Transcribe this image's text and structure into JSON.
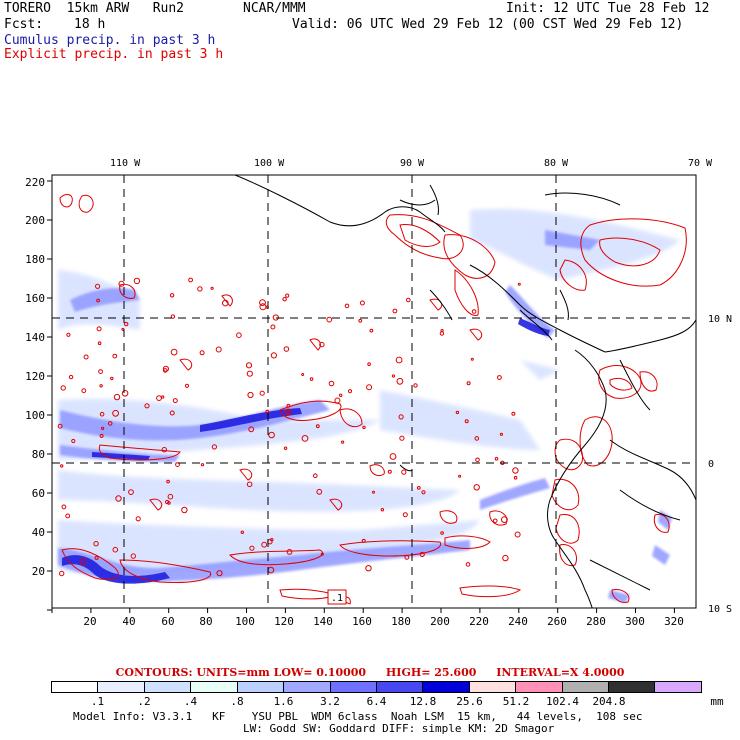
{
  "header": {
    "model": "TORERO  15km ARW   Run2",
    "org": "NCAR/MMM",
    "init": "Init: 12 UTC Tue 28 Feb 12",
    "fcst_label": "Fcst:",
    "fcst_value": "18 h",
    "valid": "Valid: 06 UTC Wed 29 Feb 12 (00 CST Wed 29 Feb 12)",
    "line_blue": "Cumulus precip. in past 3 h",
    "line_red": "Explicit precip. in past 3 h"
  },
  "axes": {
    "top_lon": [
      "110 W",
      "100 W",
      "90 W",
      "80 W",
      "70 W"
    ],
    "left_y": [
      "220",
      "200",
      "180",
      "160",
      "140",
      "120",
      "100",
      "80",
      "60",
      "40",
      "20"
    ],
    "bottom_x": [
      "20",
      "40",
      "60",
      "80",
      "100",
      "120",
      "140",
      "160",
      "180",
      "200",
      "220",
      "240",
      "260",
      "280",
      "300",
      "320"
    ],
    "right_lat": [
      "10 N",
      "0",
      "10 S"
    ]
  },
  "map": {
    "annotation": ".1",
    "colors": {
      "cumulus": "#5a5aff",
      "explicit": "#e00000",
      "coast": "#000000"
    }
  },
  "legend": {
    "contours": "CONTOURS:  UNITS=mm  LOW= 0.10000",
    "high": "HIGH=  25.600",
    "interval": "INTERVAL=X  4.0000",
    "unit": "mm",
    "labels": [
      ".1",
      ".2",
      ".4",
      ".8",
      "1.6",
      "3.2",
      "6.4",
      "12.8",
      "25.6",
      "51.2",
      "102.4",
      "204.8"
    ],
    "colors": [
      "#ffffff",
      "#e8f0ff",
      "#d0e0ff",
      "#e8fff8",
      "#bcd0ff",
      "#a0a8ff",
      "#7070ff",
      "#4848f0",
      "#0000d8",
      "#ffe0e0",
      "#ff90b8",
      "#b0b0b0",
      "#303030",
      "#d8a8ff"
    ]
  },
  "footer": {
    "line1": "Model Info: V3.3.1   KF    YSU PBL  WDM 6class  Noah LSM  15 km,   44 levels,  108 sec",
    "line2": "LW: Godd SW: Goddard DIFF: simple KM: 2D Smagor"
  }
}
